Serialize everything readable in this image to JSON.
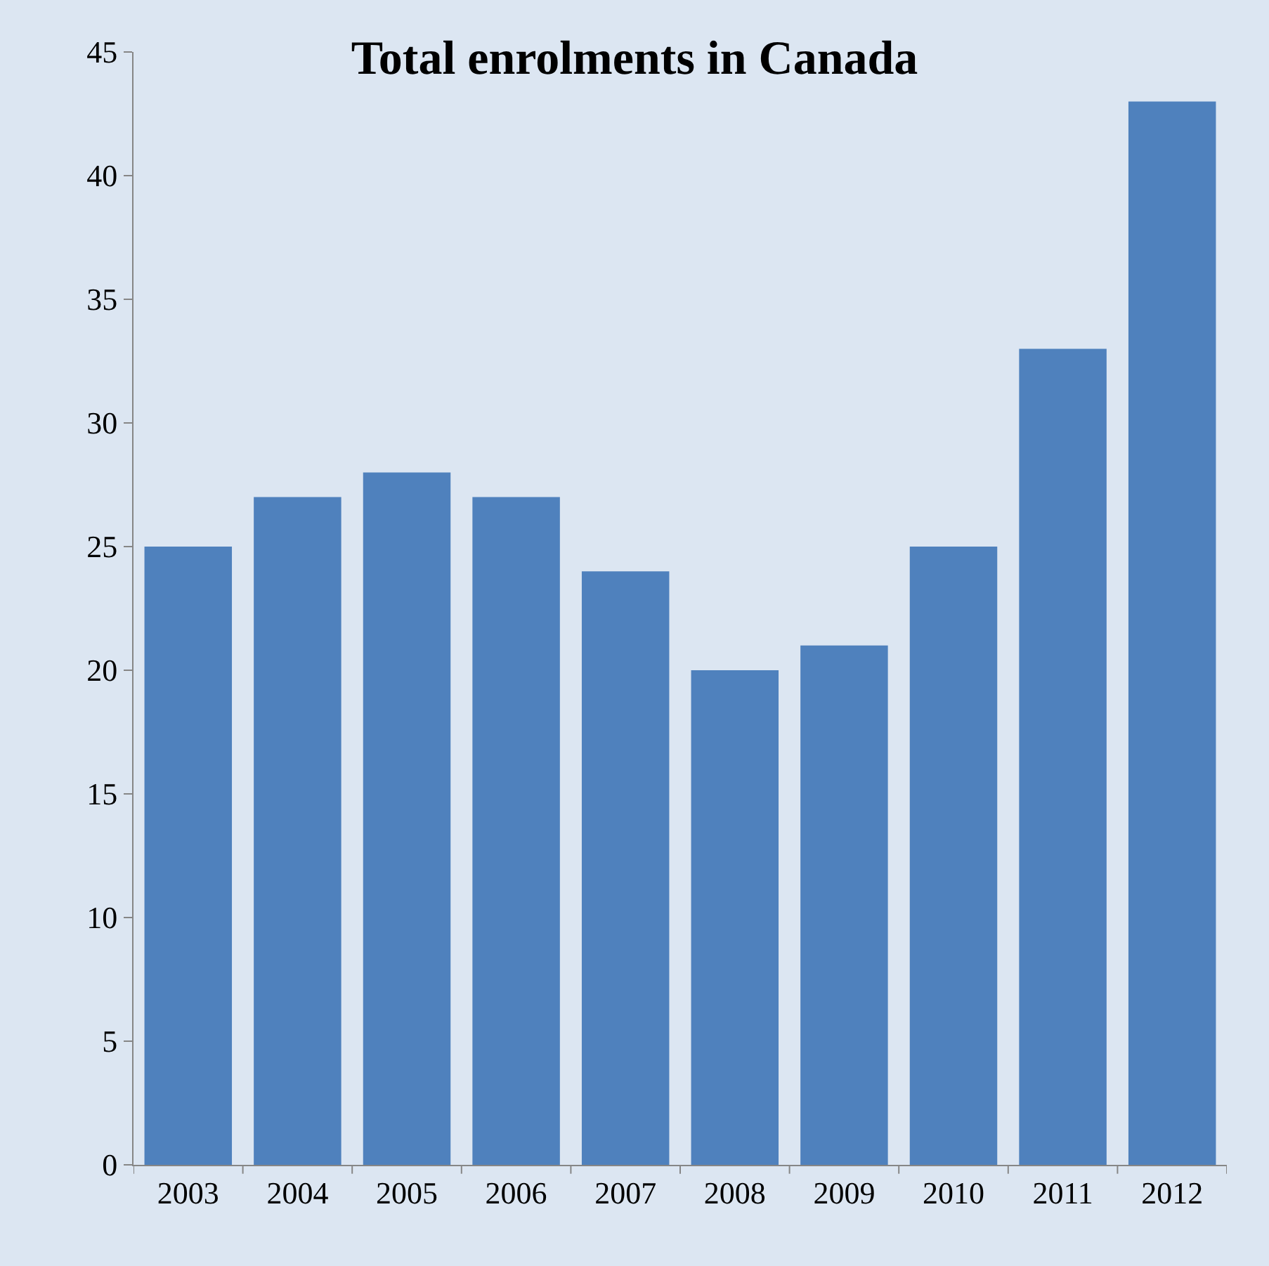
{
  "chart_data": {
    "type": "bar",
    "title": "Total enrolments in Canada",
    "categories": [
      "2003",
      "2004",
      "2005",
      "2006",
      "2007",
      "2008",
      "2009",
      "2010",
      "2011",
      "2012"
    ],
    "values": [
      25,
      27,
      28,
      27,
      24,
      20,
      21,
      25,
      33,
      43
    ],
    "color": "#4f81bd",
    "ylim": [
      0,
      45
    ],
    "yticks": [
      0,
      5,
      10,
      15,
      20,
      25,
      30,
      35,
      40,
      45
    ],
    "grid": false,
    "legend": false
  }
}
